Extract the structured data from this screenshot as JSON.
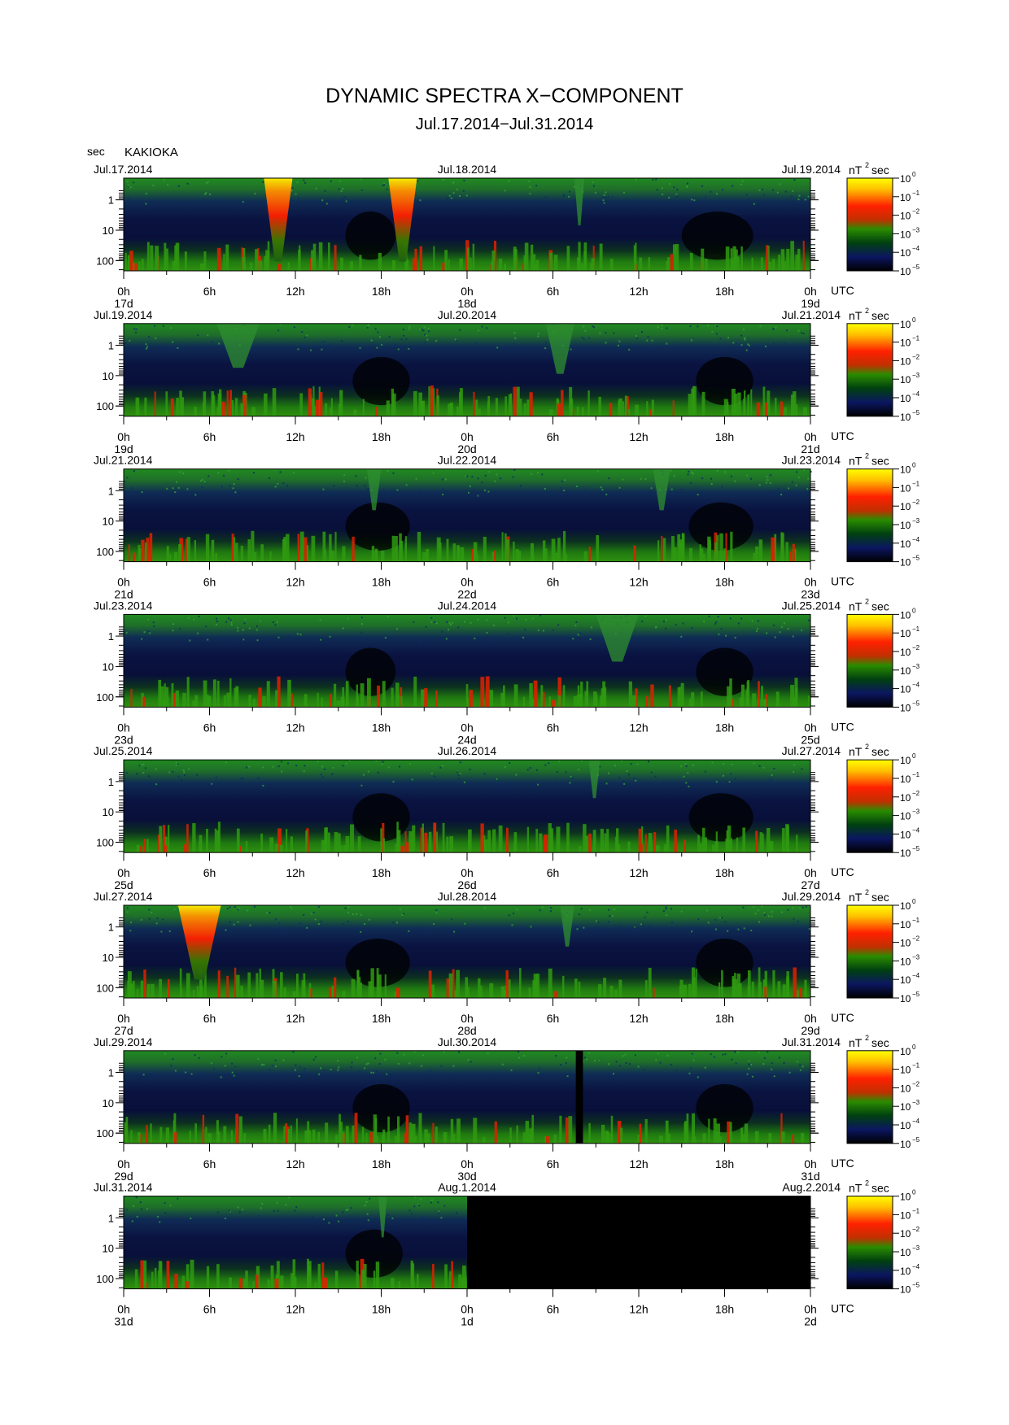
{
  "page": {
    "title": "DYNAMIC SPECTRA X−COMPONENT",
    "subtitle": "Jul.17.2014−Jul.31.2014",
    "y_unit": "sec",
    "station": "KAKIOKA"
  },
  "chart_data": {
    "type": "heatmap",
    "x_tick_labels": [
      "0h",
      "6h",
      "12h",
      "18h",
      "0h",
      "6h",
      "12h",
      "18h",
      "0h"
    ],
    "x_unit": "UTC",
    "y_tick_labels": [
      "1",
      "10",
      "100"
    ],
    "y_scale": "log",
    "colorbar": {
      "unit": "nT",
      "unit_exponent": "2",
      "unit_suffix": "sec",
      "base": "10",
      "tick_exponents": [
        "0",
        "−1",
        "−2",
        "−3",
        "−4",
        "−5"
      ],
      "colors": [
        "#ffff00",
        "#ffaa00",
        "#ff2000",
        "#2a8c00",
        "#004010",
        "#0b1660",
        "#000000"
      ]
    },
    "panels": [
      {
        "date_left": "Jul.17.2014",
        "date_mid": "Jul.18.2014",
        "date_right": "Jul.19.2014",
        "day_left": "17d",
        "day_mid": "18d",
        "day_right": "19d",
        "events": [
          {
            "start_h": 9.8,
            "end_h": 11.8,
            "level": 1.0
          },
          {
            "start_h": 18.5,
            "end_h": 20.5,
            "level": 1.0
          },
          {
            "start_h": 31.5,
            "end_h": 32.2,
            "level": 0.4
          }
        ],
        "dark": [
          {
            "start_h": 15.5,
            "end_h": 19.0
          },
          {
            "start_h": 39.0,
            "end_h": 44.0
          }
        ],
        "missing": []
      },
      {
        "date_left": "Jul.19.2014",
        "date_mid": "Jul.20.2014",
        "date_right": "Jul.21.2014",
        "day_left": "19d",
        "day_mid": "20d",
        "day_right": "21d",
        "events": [
          {
            "start_h": 6.5,
            "end_h": 9.5,
            "level": 0.35
          },
          {
            "start_h": 29.5,
            "end_h": 31.5,
            "level": 0.45
          }
        ],
        "dark": [
          {
            "start_h": 16.0,
            "end_h": 20.0
          },
          {
            "start_h": 40.0,
            "end_h": 44.0
          }
        ],
        "missing": []
      },
      {
        "date_left": "Jul.21.2014",
        "date_mid": "Jul.22.2014",
        "date_right": "Jul.23.2014",
        "day_left": "21d",
        "day_mid": "22d",
        "day_right": "23d",
        "events": [
          {
            "start_h": 17.0,
            "end_h": 18.0,
            "level": 0.3
          },
          {
            "start_h": 37.0,
            "end_h": 38.2,
            "level": 0.3
          }
        ],
        "dark": [
          {
            "start_h": 15.5,
            "end_h": 20.0
          },
          {
            "start_h": 39.5,
            "end_h": 44.0
          }
        ],
        "missing": []
      },
      {
        "date_left": "Jul.23.2014",
        "date_mid": "Jul.24.2014",
        "date_right": "Jul.25.2014",
        "day_left": "23d",
        "day_mid": "24d",
        "day_right": "25d",
        "events": [
          {
            "start_h": 33.0,
            "end_h": 36.0,
            "level": 0.4
          }
        ],
        "dark": [
          {
            "start_h": 15.5,
            "end_h": 19.0
          },
          {
            "start_h": 40.0,
            "end_h": 44.0
          }
        ],
        "missing": []
      },
      {
        "date_left": "Jul.25.2014",
        "date_mid": "Jul.26.2014",
        "date_right": "Jul.27.2014",
        "day_left": "25d",
        "day_mid": "26d",
        "day_right": "27d",
        "events": [
          {
            "start_h": 32.5,
            "end_h": 33.3,
            "level": 0.25
          }
        ],
        "dark": [
          {
            "start_h": 16.0,
            "end_h": 20.0
          },
          {
            "start_h": 39.5,
            "end_h": 44.0
          }
        ],
        "missing": []
      },
      {
        "date_left": "Jul.27.2014",
        "date_mid": "Jul.28.2014",
        "date_right": "Jul.29.2014",
        "day_left": "27d",
        "day_mid": "28d",
        "day_right": "29d",
        "events": [
          {
            "start_h": 3.8,
            "end_h": 6.8,
            "level": 0.85
          },
          {
            "start_h": 30.5,
            "end_h": 31.5,
            "level": 0.3
          }
        ],
        "dark": [
          {
            "start_h": 15.5,
            "end_h": 20.0
          },
          {
            "start_h": 40.0,
            "end_h": 44.0
          }
        ],
        "missing": []
      },
      {
        "date_left": "Jul.29.2014",
        "date_mid": "Jul.30.2014",
        "date_right": "Jul.31.2014",
        "day_left": "29d",
        "day_mid": "30d",
        "day_right": "31d",
        "events": [],
        "dark": [
          {
            "start_h": 16.0,
            "end_h": 20.0
          },
          {
            "start_h": 40.0,
            "end_h": 44.0
          }
        ],
        "missing": [
          {
            "start_h": 31.6,
            "end_h": 32.1
          }
        ]
      },
      {
        "date_left": "Jul.31.2014",
        "date_mid": "Aug.1.2014",
        "date_right": "Aug.2.2014",
        "day_left": "31d",
        "day_mid": "1d",
        "day_right": "2d",
        "events": [
          {
            "start_h": 17.8,
            "end_h": 18.4,
            "level": 0.3
          }
        ],
        "dark": [
          {
            "start_h": 15.5,
            "end_h": 19.5
          }
        ],
        "missing": [
          {
            "start_h": 24.0,
            "end_h": 48.0
          }
        ]
      }
    ]
  }
}
